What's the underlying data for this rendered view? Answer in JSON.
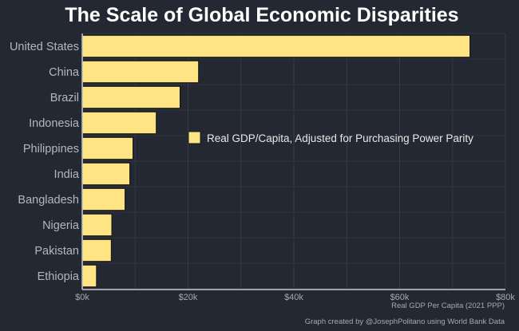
{
  "chart_data": {
    "type": "bar",
    "orientation": "horizontal",
    "title": "The Scale of Global Economic Disparities",
    "xlabel": "Real GDP Per Capita (2021 PPP)",
    "ylabel": "",
    "categories": [
      "United States",
      "China",
      "Brazil",
      "Indonesia",
      "Philippines",
      "India",
      "Bangladesh",
      "Nigeria",
      "Pakistan",
      "Ethiopia"
    ],
    "series": [
      {
        "name": "Real GDP/Capita, Adjusted for Purchasing Power Parity",
        "values": [
          73300,
          22000,
          18500,
          14000,
          9600,
          9000,
          8100,
          5600,
          5500,
          2700
        ]
      }
    ],
    "xlim": [
      0,
      80000
    ],
    "xticks": [
      0,
      20000,
      40000,
      60000,
      80000
    ],
    "xtick_labels": [
      "$0k",
      "$20k",
      "$40k",
      "$60k",
      "$80k"
    ],
    "grid": true,
    "legend_position": "center-right",
    "caption": "Graph created by @JosephPolitano using World Bank Data",
    "colors": {
      "bar": "#FFE484",
      "background": "#242832",
      "text": "#FFFFFF",
      "muted": "#A5A9B0"
    }
  }
}
